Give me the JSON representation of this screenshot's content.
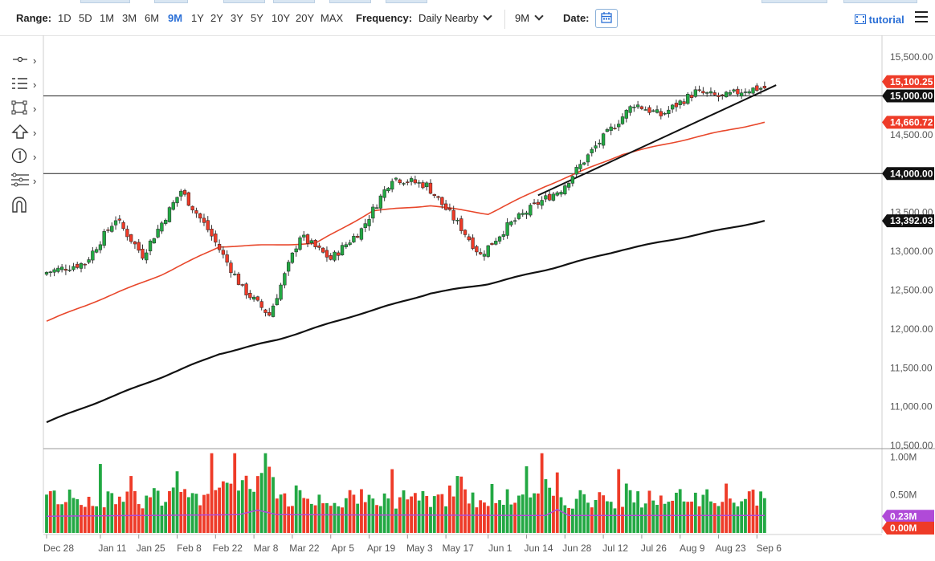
{
  "toolbar": {
    "range_label": "Range:",
    "ranges": [
      "1D",
      "5D",
      "1M",
      "3M",
      "6M",
      "9M",
      "1Y",
      "2Y",
      "3Y",
      "5Y",
      "10Y",
      "20Y",
      "MAX"
    ],
    "active_range": "9M",
    "frequency_label": "Frequency:",
    "frequency_value": "Daily Nearby",
    "period_value": "9M",
    "date_label": "Date:",
    "tutorial_label": "tutorial"
  },
  "left_tools": [
    "crosshair-icon",
    "indicators-icon",
    "drawing-box-icon",
    "arrow-up-icon",
    "numbered-marker-icon",
    "fibonacci-icon",
    "magnet-icon"
  ],
  "colors": {
    "up": "#22a843",
    "down": "#ee3b28",
    "ma_fast": "#e8472b",
    "ma_slow": "#111111",
    "volume_avg": "#b04ad8",
    "tag_last": "#ee3b28",
    "tag_ma_fast": "#ee3b28",
    "tag_black": "#111111",
    "tag_volume": "#b04ad8"
  },
  "chart_data": {
    "type": "candlestick",
    "x_ticks": [
      "Dec 28",
      "Jan 11",
      "Jan 25",
      "Feb 8",
      "Feb 22",
      "Mar 8",
      "Mar 22",
      "Apr 5",
      "Apr 19",
      "May 3",
      "May 17",
      "Jun 1",
      "Jun 14",
      "Jun 28",
      "Jul 12",
      "Jul 26",
      "Aug 9",
      "Aug 23",
      "Sep 6"
    ],
    "y_ticks": [
      "15,500.00",
      "15,000.00",
      "14,500.00",
      "14,000.00",
      "13,500.00",
      "13,000.00",
      "12,500.00",
      "12,000.00",
      "11,500.00",
      "11,000.00",
      "10,500.00"
    ],
    "y_tick_values": [
      15500,
      15000,
      14500,
      14000,
      13500,
      13000,
      12500,
      12000,
      11500,
      11000,
      10500
    ],
    "ylim": [
      10470,
      15780
    ],
    "close_anchors": [
      [
        0,
        12730
      ],
      [
        10,
        12850
      ],
      [
        18,
        13420
      ],
      [
        25,
        12950
      ],
      [
        35,
        13780
      ],
      [
        42,
        13280
      ],
      [
        51,
        12520
      ],
      [
        58,
        12180
      ],
      [
        66,
        13200
      ],
      [
        74,
        12900
      ],
      [
        82,
        13280
      ],
      [
        90,
        13950
      ],
      [
        99,
        13850
      ],
      [
        108,
        13300
      ],
      [
        113,
        12950
      ],
      [
        120,
        13320
      ],
      [
        128,
        13620
      ],
      [
        134,
        13800
      ],
      [
        143,
        14350
      ],
      [
        153,
        14900
      ],
      [
        160,
        14750
      ],
      [
        169,
        15050
      ],
      [
        176,
        14980
      ],
      [
        182,
        15080
      ],
      [
        186,
        15100
      ],
      [
        187,
        15100.25
      ]
    ],
    "last_price": "15,100.25",
    "horizontal_levels": [
      {
        "value": 15000,
        "label": "15,000.00"
      },
      {
        "value": 14000,
        "label": "14,000.00"
      }
    ],
    "moving_averages": [
      {
        "color": "#e8472b",
        "last_value": "14,660.72",
        "anchors": [
          [
            0,
            12100
          ],
          [
            30,
            12700
          ],
          [
            45,
            13060
          ],
          [
            70,
            13100
          ],
          [
            85,
            13520
          ],
          [
            100,
            13590
          ],
          [
            115,
            13480
          ],
          [
            130,
            13840
          ],
          [
            150,
            14250
          ],
          [
            170,
            14480
          ],
          [
            187,
            14660.72
          ]
        ]
      },
      {
        "color": "#111111",
        "last_value": "13,392.03",
        "anchors": [
          [
            0,
            10800
          ],
          [
            30,
            11380
          ],
          [
            45,
            11680
          ],
          [
            60,
            11860
          ],
          [
            80,
            12170
          ],
          [
            100,
            12460
          ],
          [
            115,
            12580
          ],
          [
            130,
            12760
          ],
          [
            150,
            13020
          ],
          [
            170,
            13220
          ],
          [
            187,
            13392.03
          ]
        ]
      }
    ],
    "trendline": {
      "from": [
        128,
        13720
      ],
      "to": [
        190,
        15180
      ]
    },
    "volume": {
      "ticks": [
        "1.00M",
        "0.50M"
      ],
      "tick_values": [
        1000000,
        500000
      ],
      "ylim": [
        0,
        1100000
      ],
      "average_value": "0.23M",
      "last_value": "0.00M",
      "avg_anchors": [
        [
          0,
          220000
        ],
        [
          50,
          240000
        ],
        [
          55,
          300000
        ],
        [
          60,
          240000
        ],
        [
          130,
          230000
        ],
        [
          133,
          310000
        ],
        [
          136,
          230000
        ],
        [
          187,
          230000
        ]
      ]
    }
  }
}
